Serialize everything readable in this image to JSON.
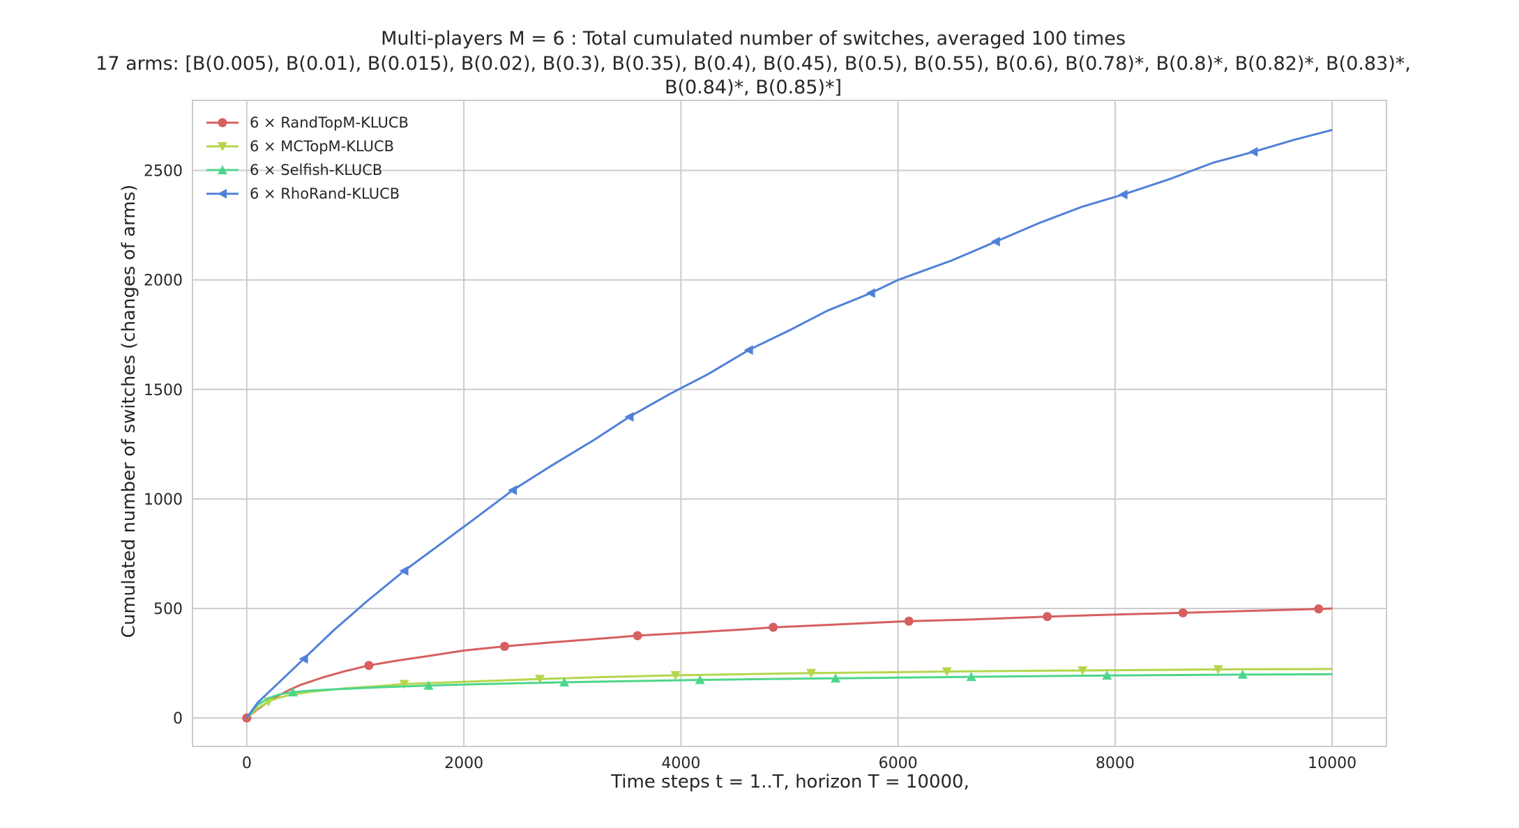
{
  "chart_data": {
    "type": "line",
    "title": "Multi-players M = 6 : Total cumulated number of switches, averaged 100 times",
    "subtitle_lines": [
      "17 arms: [B(0.005), B(0.01), B(0.015), B(0.02), B(0.3), B(0.35), B(0.4), B(0.45), B(0.5), B(0.55), B(0.6), B(0.78)*, B(0.8)*, B(0.82)*, B(0.83)*,",
      "B(0.84)*, B(0.85)*]"
    ],
    "xlabel": "Time steps t = 1..T, horizon T = 10000,",
    "ylabel": "Cumulated number of switches (changes of arms)",
    "xlim": [
      -500,
      10500
    ],
    "ylim": [
      -130,
      2820
    ],
    "xticks": [
      0,
      2000,
      4000,
      6000,
      8000,
      10000
    ],
    "yticks": [
      0,
      500,
      1000,
      1500,
      2000,
      2500
    ],
    "grid": true,
    "legend_position": "top-left",
    "series": [
      {
        "name": "6 × RandTopM-KLUCB",
        "color": "#d65f5f",
        "marker": "circle",
        "x": [
          0,
          100,
          200,
          300,
          400,
          500,
          700,
          900,
          1125,
          1400,
          1700,
          2000,
          2375,
          2800,
          3250,
          3600,
          4100,
          4600,
          4850,
          5400,
          6000,
          6100,
          6700,
          7375,
          8000,
          8625,
          9300,
          9875,
          10000
        ],
        "y": [
          0,
          40,
          75,
          105,
          130,
          152,
          185,
          213,
          240,
          263,
          285,
          308,
          327,
          345,
          362,
          376,
          390,
          405,
          414,
          426,
          440,
          442,
          450,
          463,
          472,
          480,
          490,
          498,
          500
        ],
        "marker_x": [
          0,
          1125,
          2375,
          3600,
          4850,
          6100,
          7375,
          8625,
          9875
        ]
      },
      {
        "name": "6 × MCTopM-KLUCB",
        "color": "#b5d64c",
        "marker": "triangle-down",
        "x": [
          0,
          100,
          200,
          300,
          400,
          600,
          900,
          1200,
          1450,
          2000,
          2700,
          3300,
          3950,
          4600,
          5200,
          5800,
          6450,
          7100,
          7700,
          8300,
          8950,
          9500,
          10000
        ],
        "y": [
          0,
          45,
          75,
          93,
          105,
          120,
          135,
          145,
          155,
          165,
          178,
          187,
          195,
          200,
          205,
          208,
          212,
          215,
          217,
          219,
          222,
          223,
          224
        ],
        "marker_x": [
          200,
          1450,
          2700,
          3950,
          5200,
          6450,
          7700,
          8950
        ]
      },
      {
        "name": "6 × Selfish-KLUCB",
        "color": "#4dd68a",
        "marker": "triangle-up",
        "x": [
          0,
          100,
          200,
          300,
          425,
          600,
          900,
          1200,
          1675,
          2200,
          2925,
          3500,
          4175,
          4800,
          5425,
          6000,
          6675,
          7300,
          7925,
          8500,
          9175,
          9600,
          10000
        ],
        "y": [
          0,
          60,
          90,
          108,
          118,
          126,
          133,
          140,
          148,
          155,
          163,
          168,
          174,
          178,
          181,
          184,
          188,
          191,
          194,
          196,
          198,
          199,
          200
        ],
        "marker_x": [
          425,
          1675,
          2925,
          4175,
          5425,
          6675,
          7925,
          9175
        ]
      },
      {
        "name": "6 × RhoRand-KLUCB",
        "color": "#5080d8",
        "marker": "triangle-left",
        "x": [
          0,
          100,
          250,
          525,
          800,
          1100,
          1450,
          1800,
          2100,
          2450,
          2800,
          3200,
          3525,
          3900,
          4250,
          4625,
          5000,
          5350,
          5750,
          6000,
          6500,
          6900,
          7300,
          7700,
          8075,
          8500,
          8900,
          9275,
          9650,
          10000
        ],
        "y": [
          0,
          70,
          140,
          270,
          400,
          530,
          672,
          800,
          910,
          1040,
          1150,
          1270,
          1375,
          1480,
          1570,
          1680,
          1770,
          1860,
          1940,
          2000,
          2090,
          2175,
          2260,
          2335,
          2390,
          2460,
          2535,
          2585,
          2640,
          2685
        ],
        "marker_x": [
          525,
          1450,
          2450,
          3525,
          4625,
          5750,
          6900,
          8075,
          9275
        ]
      }
    ]
  }
}
